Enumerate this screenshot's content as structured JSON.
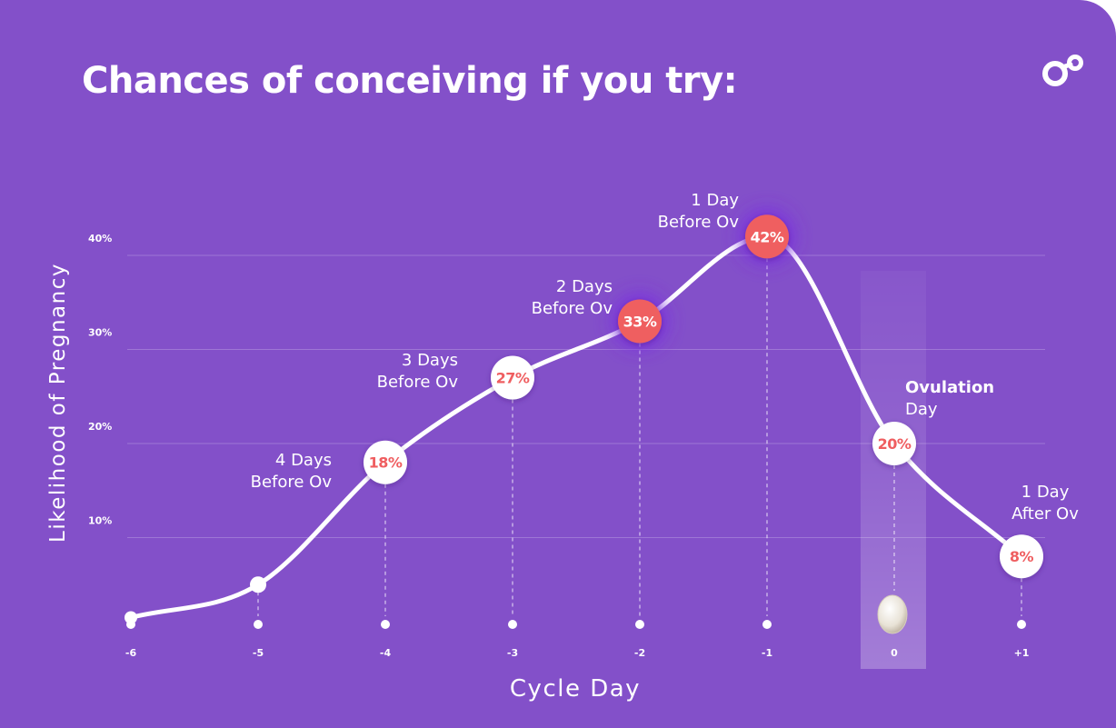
{
  "title": "Chances of conceiving if you try:",
  "logo_icon": "brand-logo-icon",
  "colors": {
    "background": "#8350c9",
    "highlight": "#ef5e60",
    "white": "#ffffff"
  },
  "chart_data": {
    "type": "line",
    "title": "Chances of conceiving if you try:",
    "xlabel": "Cycle Day",
    "ylabel": "Likelihood of Pregnancy",
    "yticks": [
      "10%",
      "20%",
      "30%",
      "40%"
    ],
    "ylim": [
      0,
      42
    ],
    "grid": true,
    "x": [
      "-6",
      "-5",
      "-4",
      "-3",
      "-2",
      "-1",
      "0",
      "+1"
    ],
    "values": [
      1.5,
      5,
      18,
      27,
      33,
      42,
      20,
      8
    ],
    "value_labels": [
      "",
      "",
      "18%",
      "27%",
      "33%",
      "42%",
      "20%",
      "8%"
    ],
    "highlighted": [
      false,
      false,
      false,
      false,
      true,
      true,
      false,
      false
    ],
    "annotations": [
      "",
      "",
      "4 Days\nBefore Ov",
      "3 Days\nBefore Ov",
      "2 Days\nBefore Ov",
      "1 Day\nBefore Ov",
      "Ovulation\nDay",
      "1 Day\nAfter Ov"
    ],
    "ovulation_day_index": 6,
    "ovulation_marker": "egg-icon"
  }
}
